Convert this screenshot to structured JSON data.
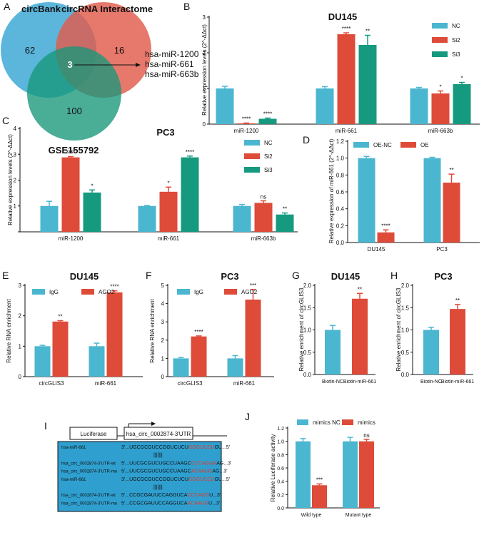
{
  "colors": {
    "nc": "#4bb6cf",
    "si2": "#de4b39",
    "si3": "#159a7f",
    "igg": "#4bb6cf",
    "ago2": "#de4b39",
    "venn_a": "#4aaed8",
    "venn_b": "#e25a4c",
    "venn_c": "#17977a",
    "seq_box": "#2f9fcf",
    "mutant_red": "#e03a2a"
  },
  "panelA": {
    "letter": "A",
    "sets": [
      "circBank",
      "circRNA Interactome",
      "GSE155792"
    ],
    "regions": {
      "a_only": "62",
      "b_only": "16",
      "c_only": "100",
      "abc": "3"
    },
    "mirnas": [
      "hsa-miR-1200",
      "hsa-miR-661",
      "hsa-miR-663b"
    ]
  },
  "panelI": {
    "letter": "I",
    "luciferase_label": "Luciferase",
    "utr_label": "hsa_circ_0002874-3'UTR",
    "rows": [
      {
        "name": "hsa-miR-661",
        "five": "3'...",
        "pre": "UGCGCGUCCGGUCUCU",
        "hl": "GGGUCCU",
        "post": "GU...5'",
        "pairs": false
      },
      {
        "name": "",
        "five": "",
        "pre": "",
        "hl": "|||||||",
        "post": "",
        "pairs": true
      },
      {
        "name": "hsa_circ_0002874-3'UTR-wt",
        "five": "5'...",
        "pre": "UUCGCGUCUGCCUAAGC",
        "hl": "CCCAGGA",
        "post": "AG...3'",
        "pairs": false
      },
      {
        "name": "hsa_circ_0002874-3'UTR-mu",
        "five": "5'...",
        "pre": "UUCGCGUCUGCCUAAGC",
        "hl": "ACAAUG",
        "post": "AG...3'",
        "pairs": false
      },
      {
        "name": "hsa-miR-661",
        "five": "3'...",
        "pre": "UGCGCGUCCGGUCUCU",
        "hl": "GGGUCCU",
        "post": "GU...5'",
        "pairs": false
      },
      {
        "name": "",
        "five": "",
        "pre": "",
        "hl": "|||||||",
        "post": "",
        "pairs": true
      },
      {
        "name": "hsa_circ_0002874-3'UTR-wt",
        "five": "5'...",
        "pre": "CCGCGAUUCCAGGUCA",
        "hl": "CCCAGG",
        "post": "U...3'",
        "pairs": false
      },
      {
        "name": "hsa_circ_0002874-3'UTR-mu",
        "five": "5'...",
        "pre": "CCGCGAUUCCAGGUCA",
        "hl": "ACAAUG",
        "post": "U...3'",
        "pairs": false
      }
    ]
  },
  "chart_data": [
    {
      "id": "B",
      "letter": "B",
      "type": "bar",
      "title": "DU145",
      "ylabel": "Relative expression levels (2^-ΔΔct)",
      "ylim": [
        0,
        3
      ],
      "ticks": [
        0,
        1,
        2,
        3
      ],
      "tick_labels": [
        "0",
        "1",
        "2",
        "3"
      ],
      "categories": [
        "miR-1200",
        "miR-661",
        "miR-663b"
      ],
      "legend_position": "top-right",
      "series": [
        {
          "name": "NC",
          "color": "#4bb6cf",
          "values": [
            1.0,
            1.0,
            1.0
          ],
          "errors": [
            0.06,
            0.05,
            0.03
          ],
          "sig": [
            "",
            "",
            ""
          ]
        },
        {
          "name": "Si2",
          "color": "#de4b39",
          "values": [
            0.02,
            2.52,
            0.86
          ],
          "errors": [
            0.01,
            0.04,
            0.07
          ],
          "sig": [
            "****",
            "****",
            "*"
          ]
        },
        {
          "name": "Si3",
          "color": "#159a7f",
          "values": [
            0.15,
            2.22,
            1.12
          ],
          "errors": [
            0.02,
            0.27,
            0.05
          ],
          "sig": [
            "****",
            "**",
            "*"
          ]
        }
      ]
    },
    {
      "id": "C",
      "letter": "C",
      "type": "bar",
      "title": "PC3",
      "ylabel": "Relative expression levels (2^-ΔΔct)",
      "ylim": [
        0,
        4
      ],
      "ticks": [
        0,
        1,
        2,
        3,
        4
      ],
      "tick_labels": [
        "",
        "1",
        "2",
        "3",
        "4"
      ],
      "categories": [
        "miR-1200",
        "miR-661",
        "miR-663b"
      ],
      "legend_position": "top-right",
      "series": [
        {
          "name": "NC",
          "color": "#4bb6cf",
          "values": [
            1.0,
            1.0,
            1.0
          ],
          "errors": [
            0.18,
            0.02,
            0.06
          ],
          "sig": [
            "",
            "",
            ""
          ]
        },
        {
          "name": "Si2",
          "color": "#de4b39",
          "values": [
            2.88,
            1.55,
            1.12
          ],
          "errors": [
            0.03,
            0.18,
            0.08
          ],
          "sig": [
            "****",
            "*",
            "ns"
          ]
        },
        {
          "name": "Si3",
          "color": "#159a7f",
          "values": [
            1.52,
            2.88,
            0.67
          ],
          "errors": [
            0.1,
            0.05,
            0.06
          ],
          "sig": [
            "*",
            "****",
            "**"
          ]
        }
      ]
    },
    {
      "id": "D",
      "letter": "D",
      "type": "bar",
      "title": "",
      "ylabel": "Relative expression of miR-661 (2^-ΔΔct)",
      "ylim": [
        0,
        1.2
      ],
      "ticks": [
        0,
        0.2,
        0.4,
        0.6,
        0.8,
        1.0,
        1.2
      ],
      "tick_labels": [
        "0.0",
        "0.2",
        "0.4",
        "0.6",
        "0.8",
        "1.0",
        "1.2"
      ],
      "categories": [
        "DU145",
        "PC3"
      ],
      "legend_position": "top",
      "series": [
        {
          "name": "OE-NC",
          "color": "#4bb6cf",
          "values": [
            1.0,
            1.0
          ],
          "errors": [
            0.02,
            0.01
          ],
          "sig": [
            "",
            ""
          ]
        },
        {
          "name": "OE",
          "color": "#de4b39",
          "values": [
            0.12,
            0.71
          ],
          "errors": [
            0.03,
            0.1
          ],
          "sig": [
            "****",
            "**"
          ]
        }
      ]
    },
    {
      "id": "E",
      "letter": "E",
      "type": "bar",
      "title": "DU145",
      "ylabel": "Relative RNA enrichment",
      "ylim": [
        0,
        3
      ],
      "ticks": [
        0,
        1,
        2,
        3
      ],
      "tick_labels": [
        "0",
        "1",
        "2",
        "3"
      ],
      "categories": [
        "circGLIS3",
        "miR-661"
      ],
      "legend_position": "top",
      "series": [
        {
          "name": "IgG",
          "color": "#4bb6cf",
          "values": [
            1.0,
            1.0
          ],
          "errors": [
            0.03,
            0.1
          ],
          "sig": [
            "",
            ""
          ]
        },
        {
          "name": "AGO2",
          "color": "#de4b39",
          "values": [
            1.81,
            2.77
          ],
          "errors": [
            0.03,
            0.05
          ],
          "sig": [
            "**",
            "****"
          ]
        }
      ]
    },
    {
      "id": "F",
      "letter": "F",
      "type": "bar",
      "title": "PC3",
      "ylabel": "Relative RNA enrichment",
      "ylim": [
        0,
        5
      ],
      "ticks": [
        0,
        1,
        2,
        3,
        4,
        5
      ],
      "tick_labels": [
        "0",
        "1",
        "2",
        "3",
        "4",
        "5"
      ],
      "categories": [
        "circGLIS3",
        "miR-661"
      ],
      "legend_position": "top",
      "series": [
        {
          "name": "IgG",
          "color": "#4bb6cf",
          "values": [
            1.0,
            1.0
          ],
          "errors": [
            0.05,
            0.15
          ],
          "sig": [
            "",
            ""
          ]
        },
        {
          "name": "AGO2",
          "color": "#de4b39",
          "values": [
            2.2,
            4.22
          ],
          "errors": [
            0.03,
            0.55
          ],
          "sig": [
            "****",
            "***"
          ]
        }
      ]
    },
    {
      "id": "G",
      "letter": "G",
      "type": "bar",
      "title": "DU145",
      "ylabel": "Relative enrichment  of circGLIS3",
      "ylim": [
        0,
        2
      ],
      "ticks": [
        0,
        0.5,
        1,
        1.5,
        2
      ],
      "tick_labels": [
        "0.0",
        "0.5",
        "1.0",
        "1.5",
        "2.0"
      ],
      "categories": [
        "Biotin-NC",
        "Biotin-miR-661"
      ],
      "legend_position": "none",
      "series": [
        {
          "name": "",
          "colors": [
            "#4bb6cf",
            "#de4b39"
          ],
          "values": [
            1.0,
            1.7
          ],
          "errors": [
            0.1,
            0.12
          ],
          "sig": [
            "",
            "**"
          ]
        }
      ]
    },
    {
      "id": "H",
      "letter": "H",
      "type": "bar",
      "title": "PC3",
      "ylabel": "Relative enrichment  of circGLIS3",
      "ylim": [
        0,
        2
      ],
      "ticks": [
        0,
        0.5,
        1,
        1.5,
        2
      ],
      "tick_labels": [
        "0.0",
        "0.5",
        "1.0",
        "1.5",
        "2.0"
      ],
      "categories": [
        "Biotin-NC",
        "Biotin-miR-661"
      ],
      "legend_position": "none",
      "series": [
        {
          "name": "",
          "colors": [
            "#4bb6cf",
            "#de4b39"
          ],
          "values": [
            1.0,
            1.47
          ],
          "errors": [
            0.06,
            0.1
          ],
          "sig": [
            "",
            "**"
          ]
        }
      ]
    },
    {
      "id": "J",
      "letter": "J",
      "type": "bar",
      "title": "",
      "ylabel": "Relative Luciferase activity",
      "ylim": [
        0,
        1.2
      ],
      "ticks": [
        0,
        0.2,
        0.4,
        0.6,
        0.8,
        1.0,
        1.2
      ],
      "tick_labels": [
        "0.0",
        "0.2",
        "0.4",
        "0.6",
        "0.8",
        "1.0",
        "1.2"
      ],
      "categories": [
        "Wild type",
        "Mutant type"
      ],
      "legend_position": "top",
      "series": [
        {
          "name": "mimics NC",
          "color": "#4bb6cf",
          "values": [
            1.0,
            1.0
          ],
          "errors": [
            0.04,
            0.06
          ],
          "sig": [
            "",
            ""
          ]
        },
        {
          "name": "mimics",
          "color": "#de4b39",
          "values": [
            0.34,
            1.0
          ],
          "errors": [
            0.02,
            0.03
          ],
          "sig": [
            "***",
            "ns"
          ]
        }
      ]
    }
  ]
}
